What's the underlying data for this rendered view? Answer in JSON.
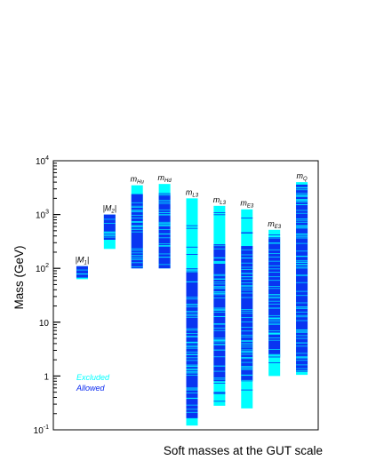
{
  "chart_data": {
    "type": "bar",
    "title": "",
    "xlabel": "Soft masses at the GUT scale",
    "ylabel": "Mass (GeV)",
    "yscale": "log",
    "ylim": [
      0.1,
      10000
    ],
    "yticks": [
      {
        "value": 0.1,
        "base": "10",
        "exp": "-1"
      },
      {
        "value": 1,
        "base": "1",
        "exp": ""
      },
      {
        "value": 10,
        "base": "10",
        "exp": ""
      },
      {
        "value": 100,
        "base": "10",
        "exp": "2"
      },
      {
        "value": 1000,
        "base": "10",
        "exp": "3"
      },
      {
        "value": 10000,
        "base": "10",
        "exp": "4"
      }
    ],
    "grid": false,
    "legend": {
      "placement": "bottom-left",
      "entries": [
        {
          "label": "Excluded",
          "color": "#00ffff"
        },
        {
          "label": "Allowed",
          "color": "#0a2af0"
        }
      ]
    },
    "colors": {
      "excluded": "#00ffff",
      "allowed": "#0a2af0"
    },
    "categories": [
      {
        "label_main": "|M",
        "label_sub": "1",
        "label_tail": "|",
        "excluded_range": [
          63,
          110
        ],
        "allowed_range": [
          67,
          110
        ]
      },
      {
        "label_main": "|M",
        "label_sub": "2",
        "label_tail": "|",
        "excluded_range": [
          230,
          1000
        ],
        "allowed_range": [
          340,
          1000
        ]
      },
      {
        "label_main": "m",
        "label_sub": "Hu",
        "label_tail": "",
        "excluded_range": [
          100,
          3500
        ],
        "allowed_range": [
          100,
          2400
        ]
      },
      {
        "label_main": "m",
        "label_sub": "Hd",
        "label_tail": "",
        "excluded_range": [
          100,
          3700
        ],
        "allowed_range": [
          100,
          2500
        ]
      },
      {
        "label_main": "m",
        "label_sub": "L3",
        "label_tail": "",
        "excluded_range": [
          0.12,
          2000
        ],
        "allowed_range": [
          0.16,
          100
        ]
      },
      {
        "label_main": "m",
        "label_sub": "L3",
        "label_tail": "",
        "excluded_range": [
          0.28,
          1450
        ],
        "allowed_range": [
          0.8,
          280
        ]
      },
      {
        "label_main": "m",
        "label_sub": "E3",
        "label_tail": "",
        "excluded_range": [
          0.25,
          1250
        ],
        "allowed_range": [
          0.8,
          260
        ]
      },
      {
        "label_main": "m",
        "label_sub": "E3",
        "label_tail": "",
        "excluded_range": [
          1.0,
          520
        ],
        "allowed_range": [
          2.2,
          380
        ]
      },
      {
        "label_main": "m",
        "label_sub": "Q",
        "label_tail": "",
        "excluded_range": [
          1.05,
          4000
        ],
        "allowed_range": [
          1.2,
          3600
        ]
      }
    ]
  }
}
